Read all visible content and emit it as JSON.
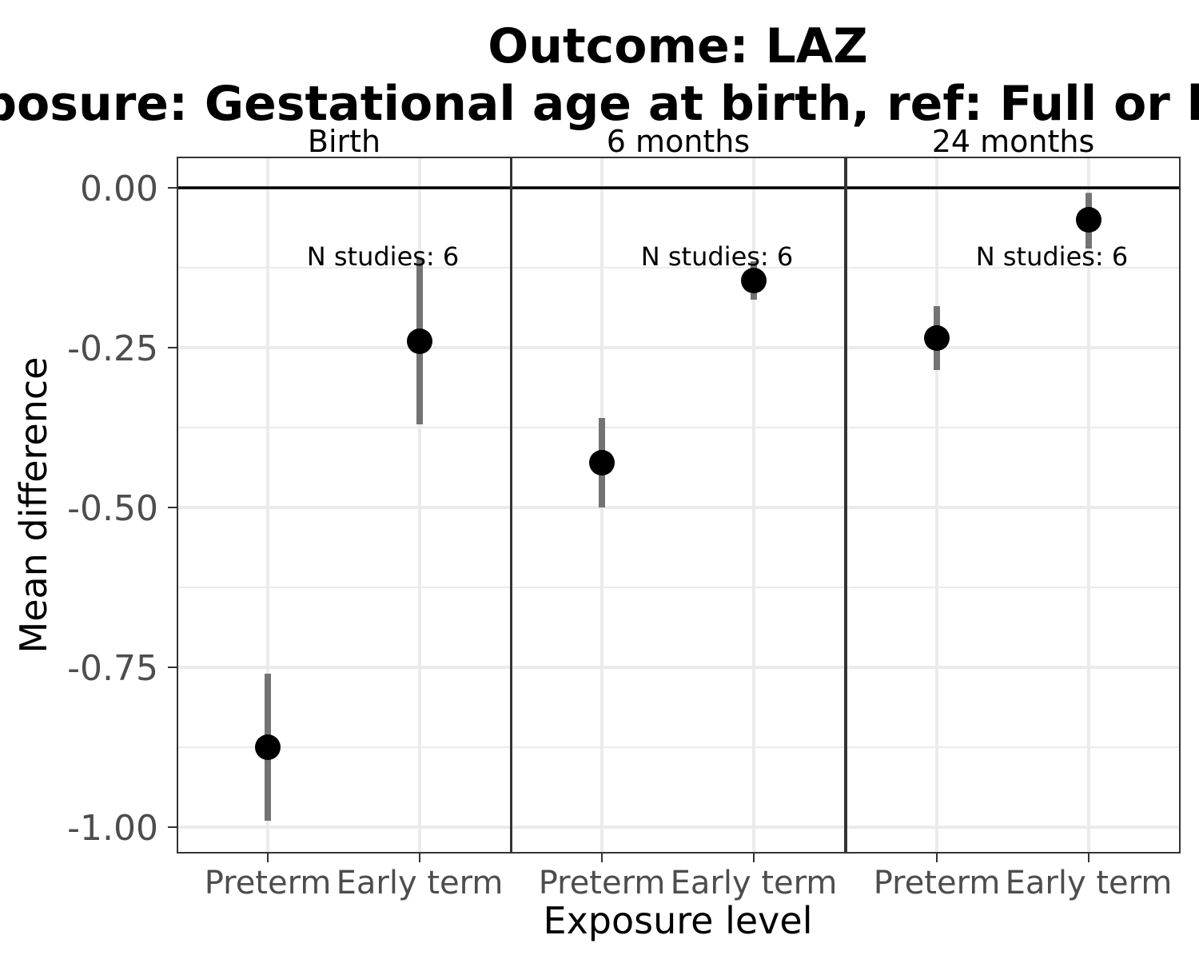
{
  "chart_data": {
    "type": "scatter",
    "title": "Outcome: LAZ",
    "subtitle": "Exposure: Gestational age at birth, ref: Full or late term",
    "xlabel": "Exposure level",
    "ylabel": "Mean difference",
    "categories": [
      "Preterm",
      "Early term"
    ],
    "ylim": [
      -1.05,
      0.05
    ],
    "yticks": [
      "0.00",
      "-0.25",
      "-0.50",
      "-0.75",
      "-1.00"
    ],
    "ytick_values": [
      0,
      -0.25,
      -0.5,
      -0.75,
      -1.0
    ],
    "reference_line": 0,
    "grid": true,
    "facets": [
      {
        "name": "Birth",
        "annotation": "N studies: 6",
        "points": [
          {
            "x": "Preterm",
            "y": -0.875,
            "lower": -0.99,
            "upper": -0.76
          },
          {
            "x": "Early term",
            "y": -0.24,
            "lower": -0.37,
            "upper": -0.11
          }
        ]
      },
      {
        "name": "6 months",
        "annotation": "N studies: 6",
        "points": [
          {
            "x": "Preterm",
            "y": -0.43,
            "lower": -0.5,
            "upper": -0.36
          },
          {
            "x": "Early term",
            "y": -0.145,
            "lower": -0.175,
            "upper": -0.115
          }
        ]
      },
      {
        "name": "24 months",
        "annotation": "N studies: 6",
        "points": [
          {
            "x": "Preterm",
            "y": -0.235,
            "lower": -0.285,
            "upper": -0.185
          },
          {
            "x": "Early term",
            "y": -0.05,
            "lower": -0.095,
            "upper": -0.008
          }
        ]
      }
    ],
    "colors": {
      "point": "#000000",
      "errorbar": "#737373",
      "grid": "#ebebeb",
      "panel_border": "#333333",
      "reference_line": "#000000",
      "tick_text": "#4d4d4d"
    }
  }
}
